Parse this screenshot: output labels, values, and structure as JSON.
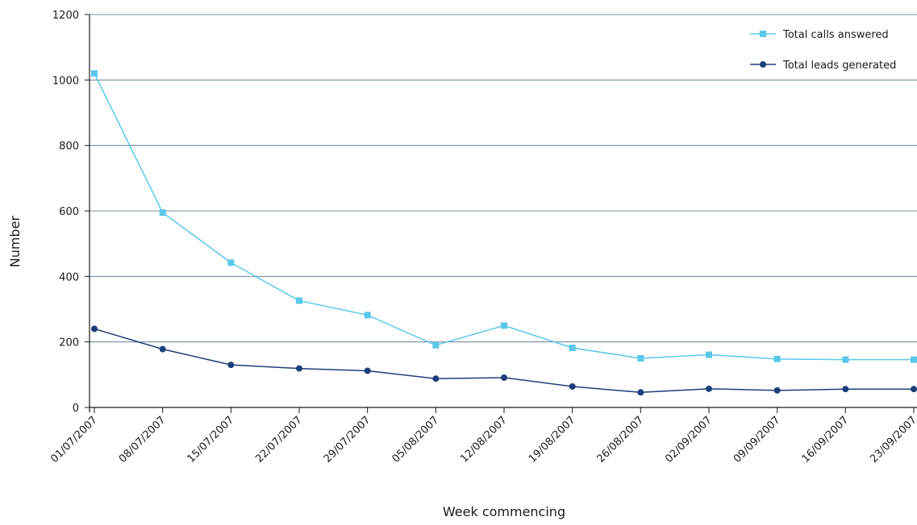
{
  "chart_data": {
    "type": "line",
    "title": "",
    "xlabel": "Week commencing",
    "ylabel": "Number",
    "ylim": [
      0,
      1200
    ],
    "yticks": [
      0,
      200,
      400,
      600,
      800,
      1000,
      1200
    ],
    "grid": true,
    "legend_position": "top-right",
    "categories": [
      "01/07/2007",
      "08/07/2007",
      "15/07/2007",
      "22/07/2007",
      "29/07/2007",
      "05/08/2007",
      "12/08/2007",
      "19/08/2007",
      "26/08/2007",
      "02/09/2007",
      "09/09/2007",
      "16/09/2007",
      "23/09/2007"
    ],
    "series": [
      {
        "name": "Total calls answered",
        "color": "#5bc8ea",
        "marker": "square",
        "values": [
          1020,
          595,
          442,
          326,
          282,
          190,
          250,
          182,
          150,
          161,
          148,
          146,
          146
        ]
      },
      {
        "name": "Total leads generated",
        "color": "#1d3f7a",
        "marker": "circle",
        "values": [
          240,
          178,
          130,
          119,
          112,
          88,
          91,
          64,
          46,
          57,
          52,
          56,
          56
        ]
      }
    ]
  }
}
